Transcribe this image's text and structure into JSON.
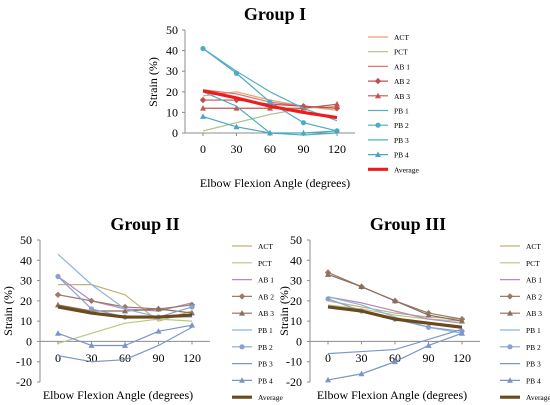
{
  "chart_data": [
    {
      "type": "line",
      "title": "Group I",
      "xlabel": "Elbow Flexion Angle (degrees)",
      "ylabel": "Strain (%)",
      "x": [
        0,
        30,
        60,
        90,
        120
      ],
      "ylim": [
        0,
        50
      ],
      "yticks": [
        0,
        10,
        20,
        30,
        40,
        50
      ],
      "legend_placement": "right",
      "series": [
        {
          "name": "ACT",
          "color": "#e8a07a",
          "marker": "none",
          "values": [
            18,
            20,
            16,
            13,
            11
          ]
        },
        {
          "name": "PCT",
          "color": "#a6c585",
          "marker": "none",
          "values": [
            1,
            5,
            9,
            12,
            13
          ]
        },
        {
          "name": "AB 1",
          "color": "#e0766f",
          "marker": "none",
          "values": [
            21,
            19,
            15,
            13,
            12
          ]
        },
        {
          "name": "AB 2",
          "color": "#c0504d",
          "marker": "diamond",
          "values": [
            16,
            16,
            14,
            13,
            12
          ]
        },
        {
          "name": "AB 3",
          "color": "#c65450",
          "marker": "triangle",
          "values": [
            12,
            12,
            12,
            12,
            14
          ]
        },
        {
          "name": "PB 1",
          "color": "#5aaec2",
          "marker": "none",
          "values": [
            41,
            30,
            20,
            12,
            6
          ]
        },
        {
          "name": "PB 2",
          "color": "#4aacc6",
          "marker": "circle",
          "values": [
            41,
            29,
            15,
            5,
            1
          ]
        },
        {
          "name": "PB 3",
          "color": "#4bb0bf",
          "marker": "none",
          "values": [
            20,
            13,
            0,
            -1,
            0
          ]
        },
        {
          "name": "PB 4",
          "color": "#4aa7c0",
          "marker": "triangle",
          "values": [
            8,
            3,
            0,
            0,
            1
          ]
        },
        {
          "name": "Average",
          "color": "#ee1c1c",
          "marker": "none",
          "values": [
            20.5,
            17,
            13,
            10,
            7.5
          ],
          "bold": true
        }
      ]
    },
    {
      "type": "line",
      "title": "Group II",
      "xlabel": "Elbow Flexion Angle (degrees)",
      "ylabel": "Strain (%)",
      "x": [
        0,
        30,
        60,
        90,
        120
      ],
      "ylim": [
        -20,
        50
      ],
      "yticks": [
        -20,
        -10,
        0,
        10,
        20,
        30,
        40,
        50
      ],
      "legend_placement": "right",
      "series": [
        {
          "name": "ACT",
          "color": "#c4b27a",
          "marker": "none",
          "values": [
            28,
            28,
            23,
            10,
            15
          ]
        },
        {
          "name": "PCT",
          "color": "#b5c983",
          "marker": "none",
          "values": [
            -1,
            4,
            9,
            11,
            10
          ]
        },
        {
          "name": "AB 1",
          "color": "#b28bc2",
          "marker": "none",
          "values": [
            32,
            20,
            16,
            15,
            19
          ]
        },
        {
          "name": "AB 2",
          "color": "#9c7a68",
          "marker": "diamond",
          "values": [
            23,
            20,
            17,
            16,
            18
          ]
        },
        {
          "name": "AB 3",
          "color": "#8a6d5d",
          "marker": "triangle",
          "values": [
            18,
            15,
            15,
            16,
            14
          ]
        },
        {
          "name": "PB 1",
          "color": "#8fb3dc",
          "marker": "none",
          "values": [
            43,
            28,
            16,
            12,
            12
          ]
        },
        {
          "name": "PB 2",
          "color": "#8aa0d0",
          "marker": "circle",
          "values": [
            32,
            16,
            12,
            12,
            17
          ]
        },
        {
          "name": "PB 3",
          "color": "#7f98c8",
          "marker": "none",
          "values": [
            -7,
            -10,
            -9,
            -2,
            7
          ]
        },
        {
          "name": "PB 4",
          "color": "#7a93c9",
          "marker": "triangle",
          "values": [
            4,
            -2,
            -2,
            5,
            8
          ]
        },
        {
          "name": "Average",
          "color": "#6b4a1c",
          "marker": "none",
          "values": [
            17,
            14,
            12,
            12,
            13
          ],
          "bold": true
        }
      ]
    },
    {
      "type": "line",
      "title": "Group III",
      "xlabel": "Elbow Flexion Angle (degrees)",
      "ylabel": "Strain (%)",
      "x": [
        0,
        30,
        60,
        90,
        120
      ],
      "ylim": [
        -20,
        50
      ],
      "yticks": [
        -20,
        -10,
        0,
        10,
        20,
        30,
        40,
        50
      ],
      "legend_placement": "right",
      "series": [
        {
          "name": "ACT",
          "color": "#c4b27a",
          "marker": "none",
          "values": [
            20,
            17,
            14,
            12,
            11
          ]
        },
        {
          "name": "PCT",
          "color": "#b5c983",
          "marker": "none",
          "values": [
            18,
            16,
            13,
            11,
            10
          ]
        },
        {
          "name": "AB 1",
          "color": "#b28bc2",
          "marker": "none",
          "values": [
            22,
            19,
            15,
            11,
            9
          ]
        },
        {
          "name": "AB 2",
          "color": "#9c7a68",
          "marker": "diamond",
          "values": [
            34,
            27,
            20,
            14,
            11
          ]
        },
        {
          "name": "AB 3",
          "color": "#8a6d5d",
          "marker": "triangle",
          "values": [
            33,
            27,
            20,
            13,
            10
          ]
        },
        {
          "name": "PB 1",
          "color": "#8fb3dc",
          "marker": "none",
          "values": [
            22,
            18,
            12,
            7,
            4
          ]
        },
        {
          "name": "PB 2",
          "color": "#8aa0d0",
          "marker": "circle",
          "values": [
            21,
            15,
            11,
            7,
            5
          ]
        },
        {
          "name": "PB 3",
          "color": "#7f98c8",
          "marker": "none",
          "values": [
            -6,
            -5,
            -4,
            1,
            6
          ]
        },
        {
          "name": "PB 4",
          "color": "#7a93c9",
          "marker": "triangle",
          "values": [
            -19,
            -16,
            -10,
            -2,
            4
          ]
        },
        {
          "name": "Average",
          "color": "#6b4a1c",
          "marker": "none",
          "values": [
            17,
            15,
            11,
            9,
            7
          ],
          "bold": true
        }
      ]
    }
  ]
}
